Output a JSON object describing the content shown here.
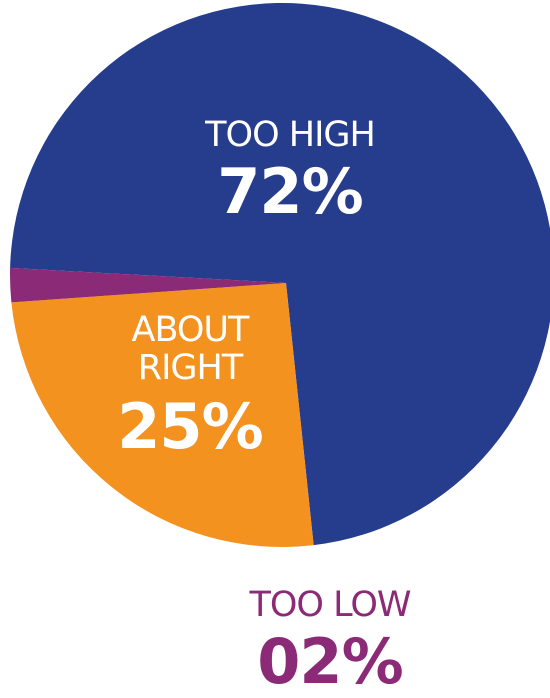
{
  "chart_data": {
    "type": "pie",
    "slices": [
      {
        "label": "TOO HIGH",
        "value": 72,
        "value_label": "72%",
        "color": "#263c8c"
      },
      {
        "label": "ABOUT RIGHT",
        "value": 25,
        "value_label": "25%",
        "color": "#f4921f"
      },
      {
        "label": "TOO LOW",
        "value": 2,
        "value_label": "02%",
        "color": "#8b2a76"
      }
    ]
  }
}
